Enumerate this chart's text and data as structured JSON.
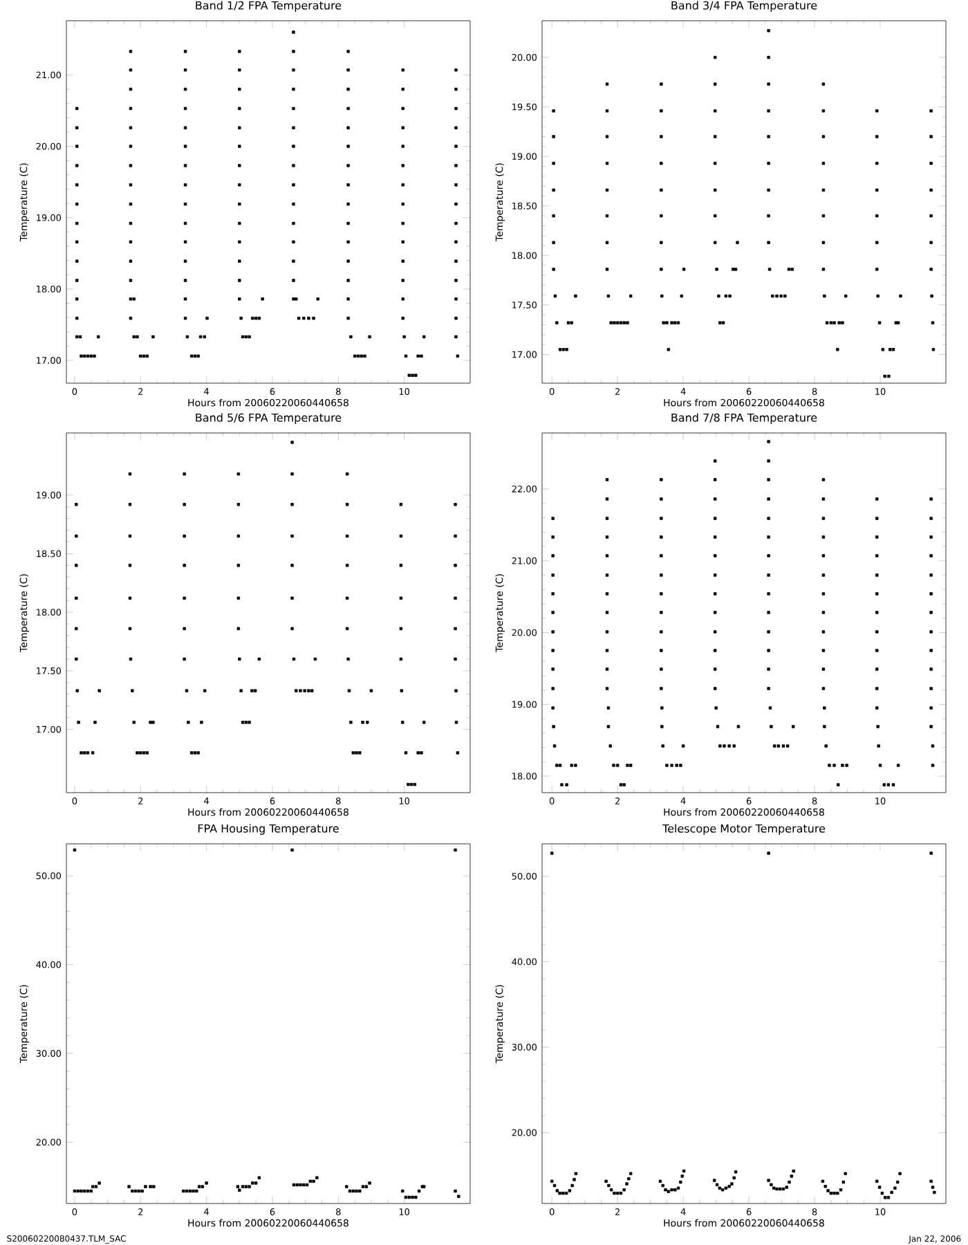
{
  "chart_data": [
    {
      "type": "scatter",
      "title": "Band 1/2 FPA Temperature",
      "xlabel": "Hours from 20060220060440658",
      "ylabel": "Temperature (C)",
      "marker": "square",
      "xlim": [
        -0.25,
        12
      ],
      "ylim": [
        16.68,
        21.76
      ],
      "xticks": [
        0,
        2,
        4,
        6,
        8,
        10
      ],
      "yticks": [
        {
          "value": 17,
          "label": "17.00"
        },
        {
          "value": 18,
          "label": "18.00"
        },
        {
          "value": 19,
          "label": "19.00"
        },
        {
          "value": 20,
          "label": "20.00"
        },
        {
          "value": 21,
          "label": "21.00"
        }
      ],
      "series": [
        {
          "color": "#000000",
          "x": [
            0.07,
            0.07,
            0.07,
            0.07,
            0.07,
            0.07,
            0.07,
            0.07,
            0.07,
            0.07,
            0.07,
            0.07,
            0.07,
            0.17,
            0.2,
            0.3,
            0.4,
            0.5,
            0.6,
            0.72
          ],
          "values": [
            17.33,
            17.59,
            17.86,
            18.12,
            18.39,
            18.66,
            18.92,
            19.19,
            19.46,
            19.73,
            20.0,
            20.26,
            20.53,
            17.33,
            17.06,
            17.06,
            17.06,
            17.06,
            17.06,
            17.33
          ]
        },
        {
          "color": "#000000",
          "x": [
            1.7,
            1.7,
            1.7,
            1.7,
            1.7,
            1.7,
            1.7,
            1.7,
            1.7,
            1.7,
            1.7,
            1.7,
            1.7,
            1.7,
            1.7,
            1.8,
            1.8,
            1.9,
            2.0,
            2.1,
            2.2,
            2.38
          ],
          "values": [
            17.59,
            17.86,
            18.12,
            18.39,
            18.66,
            18.92,
            19.19,
            19.46,
            19.73,
            20.0,
            20.26,
            20.53,
            20.8,
            21.07,
            21.33,
            17.86,
            17.33,
            17.33,
            17.06,
            17.06,
            17.06,
            17.33
          ]
        },
        {
          "color": "#000000",
          "x": [
            3.36,
            3.36,
            3.36,
            3.36,
            3.36,
            3.36,
            3.36,
            3.36,
            3.36,
            3.36,
            3.36,
            3.36,
            3.36,
            3.36,
            3.36,
            3.42,
            3.55,
            3.65,
            3.75,
            3.82,
            3.94,
            4.02
          ],
          "values": [
            17.59,
            17.86,
            18.12,
            18.39,
            18.66,
            18.92,
            19.19,
            19.46,
            19.73,
            20.0,
            20.26,
            20.53,
            20.8,
            21.07,
            21.33,
            17.33,
            17.06,
            17.06,
            17.06,
            17.33,
            17.33,
            17.59
          ]
        },
        {
          "color": "#000000",
          "x": [
            5.0,
            5.0,
            5.0,
            5.0,
            5.0,
            5.0,
            5.0,
            5.0,
            5.0,
            5.0,
            5.0,
            5.0,
            5.0,
            5.0,
            5.05,
            5.1,
            5.2,
            5.3,
            5.4,
            5.5,
            5.6,
            5.7
          ],
          "values": [
            17.86,
            18.12,
            18.39,
            18.66,
            18.92,
            19.19,
            19.46,
            19.73,
            20.0,
            20.26,
            20.53,
            20.8,
            21.07,
            21.33,
            17.59,
            17.33,
            17.33,
            17.33,
            17.59,
            17.59,
            17.59,
            17.86
          ]
        },
        {
          "color": "#000000",
          "x": [
            6.64,
            6.64,
            6.64,
            6.64,
            6.64,
            6.64,
            6.64,
            6.64,
            6.64,
            6.64,
            6.64,
            6.64,
            6.64,
            6.64,
            6.64,
            6.72,
            6.8,
            6.95,
            7.1,
            7.25,
            7.38
          ],
          "values": [
            17.86,
            18.12,
            18.39,
            18.66,
            18.92,
            19.19,
            19.46,
            19.73,
            20.0,
            20.26,
            20.53,
            20.8,
            21.07,
            21.33,
            21.6,
            17.86,
            17.59,
            17.59,
            17.59,
            17.59,
            17.86
          ]
        },
        {
          "color": "#000000",
          "x": [
            8.3,
            8.3,
            8.3,
            8.3,
            8.3,
            8.3,
            8.3,
            8.3,
            8.3,
            8.3,
            8.3,
            8.3,
            8.3,
            8.3,
            8.3,
            8.38,
            8.5,
            8.6,
            8.7,
            8.8,
            8.95
          ],
          "values": [
            17.59,
            17.86,
            18.12,
            18.39,
            18.66,
            18.92,
            19.19,
            19.46,
            19.73,
            20.0,
            20.26,
            20.53,
            20.8,
            21.07,
            21.33,
            17.33,
            17.06,
            17.06,
            17.06,
            17.06,
            17.33
          ]
        },
        {
          "color": "#000000",
          "x": [
            9.96,
            9.96,
            9.96,
            9.96,
            9.96,
            9.96,
            9.96,
            9.96,
            9.96,
            9.96,
            9.96,
            9.96,
            9.96,
            9.96,
            10.0,
            10.05,
            10.15,
            10.25,
            10.35,
            10.42,
            10.52,
            10.6
          ],
          "values": [
            17.59,
            17.86,
            18.12,
            18.39,
            18.66,
            18.92,
            19.19,
            19.46,
            19.73,
            20.0,
            20.26,
            20.53,
            20.8,
            21.07,
            17.33,
            17.06,
            16.79,
            16.79,
            16.79,
            17.06,
            17.06,
            17.33
          ]
        },
        {
          "color": "#000000",
          "x": [
            11.57,
            11.57,
            11.57,
            11.57,
            11.57,
            11.57,
            11.57,
            11.57,
            11.57,
            11.57,
            11.57,
            11.57,
            11.57,
            11.57,
            11.57,
            11.62
          ],
          "values": [
            17.33,
            17.59,
            17.86,
            18.12,
            18.39,
            18.66,
            18.92,
            19.19,
            19.46,
            19.73,
            20.0,
            20.26,
            20.53,
            20.8,
            21.07,
            17.06
          ]
        }
      ]
    },
    {
      "type": "scatter",
      "title": "Band 3/4 FPA Temperature",
      "xlabel": "Hours from 20060220060440658",
      "ylabel": "Temperature (C)",
      "marker": "square",
      "xlim": [
        -0.3,
        12
      ],
      "ylim": [
        16.71,
        20.37
      ],
      "xticks": [
        0,
        2,
        4,
        6,
        8,
        10
      ],
      "yticks": [
        {
          "value": 17,
          "label": "17.00"
        },
        {
          "value": 17.5,
          "label": "17.50"
        },
        {
          "value": 18,
          "label": "18.00"
        },
        {
          "value": 18.5,
          "label": "18.50"
        },
        {
          "value": 19,
          "label": "19.00"
        },
        {
          "value": 19.5,
          "label": "19.50"
        },
        {
          "value": 20,
          "label": "20.00"
        }
      ],
      "series": [
        {
          "color": "#000000",
          "x": [
            0.05,
            0.05,
            0.05,
            0.05,
            0.05,
            0.05,
            0.05,
            0.1,
            0.15,
            0.25,
            0.35,
            0.45,
            0.5,
            0.6,
            0.72
          ],
          "values": [
            17.86,
            18.13,
            18.4,
            18.66,
            18.93,
            19.2,
            19.46,
            17.59,
            17.32,
            17.05,
            17.05,
            17.05,
            17.32,
            17.32,
            17.59
          ]
        },
        {
          "color": "#000000",
          "x": [
            1.68,
            1.68,
            1.68,
            1.68,
            1.68,
            1.68,
            1.68,
            1.68,
            1.72,
            1.8,
            1.9,
            2.0,
            2.1,
            2.2,
            2.3,
            2.4
          ],
          "values": [
            17.86,
            18.13,
            18.4,
            18.66,
            18.93,
            19.2,
            19.46,
            19.73,
            17.59,
            17.32,
            17.32,
            17.32,
            17.32,
            17.32,
            17.32,
            17.59
          ]
        },
        {
          "color": "#000000",
          "x": [
            3.33,
            3.33,
            3.33,
            3.33,
            3.33,
            3.33,
            3.33,
            3.33,
            3.35,
            3.4,
            3.5,
            3.55,
            3.65,
            3.75,
            3.85,
            3.95,
            4.02
          ],
          "values": [
            17.86,
            18.13,
            18.4,
            18.66,
            18.93,
            19.2,
            19.46,
            19.73,
            17.59,
            17.32,
            17.32,
            17.05,
            17.32,
            17.32,
            17.32,
            17.59,
            17.86
          ]
        },
        {
          "color": "#000000",
          "x": [
            4.97,
            4.97,
            4.97,
            4.97,
            4.97,
            4.97,
            4.97,
            4.97,
            5.02,
            5.08,
            5.12,
            5.22,
            5.3,
            5.42,
            5.52,
            5.6,
            5.65
          ],
          "values": [
            18.13,
            18.4,
            18.66,
            18.93,
            19.2,
            19.46,
            19.73,
            20.0,
            17.86,
            17.59,
            17.32,
            17.32,
            17.59,
            17.59,
            17.86,
            17.86,
            18.13
          ]
        },
        {
          "color": "#000000",
          "x": [
            6.6,
            6.6,
            6.6,
            6.6,
            6.6,
            6.6,
            6.6,
            6.6,
            6.6,
            6.63,
            6.72,
            6.85,
            6.98,
            7.1,
            7.22,
            7.32
          ],
          "values": [
            18.13,
            18.4,
            18.66,
            18.93,
            19.2,
            19.46,
            19.73,
            20.0,
            20.27,
            17.86,
            17.59,
            17.59,
            17.59,
            17.59,
            17.86,
            17.86
          ]
        },
        {
          "color": "#000000",
          "x": [
            8.27,
            8.27,
            8.27,
            8.27,
            8.27,
            8.27,
            8.27,
            8.27,
            8.3,
            8.38,
            8.5,
            8.6,
            8.7,
            8.75,
            8.85,
            8.95
          ],
          "values": [
            17.86,
            18.13,
            18.4,
            18.66,
            18.93,
            19.2,
            19.46,
            19.73,
            17.59,
            17.32,
            17.32,
            17.32,
            17.05,
            17.32,
            17.32,
            17.59
          ]
        },
        {
          "color": "#000000",
          "x": [
            9.9,
            9.9,
            9.9,
            9.9,
            9.9,
            9.9,
            9.9,
            9.93,
            9.98,
            10.08,
            10.14,
            10.26,
            10.3,
            10.4,
            10.48,
            10.55,
            10.62
          ],
          "values": [
            17.86,
            18.13,
            18.4,
            18.66,
            18.93,
            19.2,
            19.46,
            17.59,
            17.32,
            17.05,
            16.78,
            16.78,
            17.05,
            17.05,
            17.32,
            17.32,
            17.59
          ]
        },
        {
          "color": "#000000",
          "x": [
            11.55,
            11.55,
            11.55,
            11.55,
            11.55,
            11.55,
            11.55,
            11.57,
            11.6,
            11.62
          ],
          "values": [
            17.86,
            18.13,
            18.4,
            18.66,
            18.93,
            19.2,
            19.46,
            17.59,
            17.32,
            17.05
          ]
        }
      ]
    },
    {
      "type": "scatter",
      "title": "Band 5/6 FPA Temperature",
      "xlabel": "Hours from 20060220060440658",
      "ylabel": "Temperature (C)",
      "marker": "square",
      "xlim": [
        -0.25,
        12
      ],
      "ylim": [
        16.46,
        19.53
      ],
      "xticks": [
        0,
        2,
        4,
        6,
        8,
        10
      ],
      "yticks": [
        {
          "value": 17,
          "label": "17.00"
        },
        {
          "value": 17.5,
          "label": "17.50"
        },
        {
          "value": 18,
          "label": "18.00"
        },
        {
          "value": 18.5,
          "label": "18.50"
        },
        {
          "value": 19,
          "label": "19.00"
        }
      ],
      "series": [
        {
          "color": "#000000",
          "x": [
            0.05,
            0.05,
            0.05,
            0.05,
            0.05,
            0.05,
            0.08,
            0.12,
            0.2,
            0.3,
            0.4,
            0.55,
            0.62,
            0.75
          ],
          "values": [
            17.6,
            17.86,
            18.12,
            18.4,
            18.65,
            18.92,
            17.33,
            17.06,
            16.8,
            16.8,
            16.8,
            16.8,
            17.06,
            17.33
          ]
        },
        {
          "color": "#000000",
          "x": [
            1.68,
            1.68,
            1.68,
            1.68,
            1.68,
            1.68,
            1.7,
            1.75,
            1.8,
            1.9,
            2.0,
            2.1,
            2.2,
            2.3,
            2.38
          ],
          "values": [
            17.86,
            18.12,
            18.4,
            18.65,
            18.92,
            19.18,
            17.6,
            17.33,
            17.06,
            16.8,
            16.8,
            16.8,
            16.8,
            17.06,
            17.06
          ]
        },
        {
          "color": "#000000",
          "x": [
            3.33,
            3.33,
            3.33,
            3.33,
            3.33,
            3.33,
            3.33,
            3.4,
            3.45,
            3.55,
            3.65,
            3.75,
            3.85,
            3.95
          ],
          "values": [
            17.6,
            17.86,
            18.12,
            18.4,
            18.65,
            18.92,
            19.18,
            17.33,
            17.06,
            16.8,
            16.8,
            16.8,
            17.06,
            17.33
          ]
        },
        {
          "color": "#000000",
          "x": [
            4.97,
            4.97,
            4.97,
            4.97,
            4.97,
            4.97,
            5.0,
            5.05,
            5.1,
            5.2,
            5.3,
            5.38,
            5.48,
            5.6
          ],
          "values": [
            17.86,
            18.12,
            18.4,
            18.65,
            18.92,
            19.18,
            17.6,
            17.33,
            17.06,
            17.06,
            17.06,
            17.33,
            17.33,
            17.6
          ]
        },
        {
          "color": "#000000",
          "x": [
            6.6,
            6.6,
            6.6,
            6.6,
            6.6,
            6.6,
            6.6,
            6.65,
            6.72,
            6.85,
            6.98,
            7.1,
            7.2,
            7.3
          ],
          "values": [
            17.86,
            18.12,
            18.4,
            18.65,
            18.92,
            19.18,
            19.45,
            17.6,
            17.33,
            17.33,
            17.33,
            17.33,
            17.33,
            17.6
          ]
        },
        {
          "color": "#000000",
          "x": [
            8.27,
            8.27,
            8.27,
            8.27,
            8.27,
            8.27,
            8.3,
            8.33,
            8.38,
            8.45,
            8.55,
            8.65,
            8.74,
            8.88,
            9.0
          ],
          "values": [
            17.86,
            18.12,
            18.4,
            18.65,
            18.92,
            19.18,
            17.6,
            17.33,
            17.06,
            16.8,
            16.8,
            16.8,
            17.06,
            17.06,
            17.33
          ]
        },
        {
          "color": "#000000",
          "x": [
            9.9,
            9.9,
            9.9,
            9.9,
            9.9,
            9.9,
            9.92,
            9.95,
            10.05,
            10.12,
            10.22,
            10.32,
            10.42,
            10.52,
            10.6
          ],
          "values": [
            17.6,
            17.86,
            18.12,
            18.4,
            18.65,
            18.92,
            17.33,
            17.06,
            16.8,
            16.53,
            16.53,
            16.53,
            16.8,
            16.8,
            17.06
          ]
        },
        {
          "color": "#000000",
          "x": [
            11.55,
            11.55,
            11.55,
            11.55,
            11.55,
            11.55,
            11.57,
            11.58,
            11.62
          ],
          "values": [
            17.6,
            17.86,
            18.12,
            18.4,
            18.65,
            18.92,
            17.33,
            17.06,
            16.8
          ]
        }
      ]
    },
    {
      "type": "scatter",
      "title": "Band 7/8 FPA Temperature",
      "xlabel": "Hours from 20060220060440658",
      "ylabel": "Temperature (C)",
      "marker": "square",
      "xlim": [
        -0.3,
        12
      ],
      "ylim": [
        17.77,
        22.78
      ],
      "xticks": [
        0,
        2,
        4,
        6,
        8,
        10
      ],
      "yticks": [
        {
          "value": 18,
          "label": "18.00"
        },
        {
          "value": 19,
          "label": "19.00"
        },
        {
          "value": 20,
          "label": "20.00"
        },
        {
          "value": 21,
          "label": "21.00"
        },
        {
          "value": 22,
          "label": "22.00"
        }
      ],
      "series": [
        {
          "color": "#000000",
          "x": [
            0.03,
            0.03,
            0.03,
            0.03,
            0.03,
            0.03,
            0.03,
            0.03,
            0.03,
            0.03,
            0.03,
            0.05,
            0.08,
            0.15,
            0.25,
            0.3,
            0.45,
            0.6,
            0.72
          ],
          "values": [
            18.95,
            19.22,
            19.49,
            19.75,
            20.01,
            20.28,
            20.54,
            20.8,
            21.07,
            21.33,
            21.59,
            18.69,
            18.42,
            18.15,
            18.15,
            17.88,
            17.88,
            18.15,
            18.15
          ]
        },
        {
          "color": "#000000",
          "x": [
            1.68,
            1.68,
            1.68,
            1.68,
            1.68,
            1.68,
            1.68,
            1.68,
            1.68,
            1.68,
            1.68,
            1.68,
            1.72,
            1.72,
            1.78,
            1.88,
            2.0,
            2.1,
            2.2,
            2.3,
            2.4
          ],
          "values": [
            19.22,
            19.49,
            19.75,
            20.01,
            20.28,
            20.54,
            20.8,
            21.07,
            21.33,
            21.59,
            21.86,
            22.13,
            18.95,
            18.69,
            18.42,
            18.15,
            18.15,
            17.88,
            17.88,
            18.15,
            18.15
          ]
        },
        {
          "color": "#000000",
          "x": [
            3.33,
            3.33,
            3.33,
            3.33,
            3.33,
            3.33,
            3.33,
            3.33,
            3.33,
            3.33,
            3.33,
            3.33,
            3.35,
            3.35,
            3.38,
            3.5,
            3.65,
            3.8,
            3.92,
            4.0
          ],
          "values": [
            19.22,
            19.49,
            19.75,
            20.01,
            20.28,
            20.54,
            20.8,
            21.07,
            21.33,
            21.59,
            21.86,
            22.13,
            18.95,
            18.69,
            18.42,
            18.15,
            18.15,
            18.15,
            18.15,
            18.42
          ]
        },
        {
          "color": "#000000",
          "x": [
            4.97,
            4.97,
            4.97,
            4.97,
            4.97,
            4.97,
            4.97,
            4.97,
            4.97,
            4.97,
            4.97,
            4.97,
            4.97,
            5.0,
            5.05,
            5.12,
            5.25,
            5.4,
            5.55,
            5.68
          ],
          "values": [
            19.22,
            19.49,
            19.75,
            20.01,
            20.28,
            20.54,
            20.8,
            21.07,
            21.33,
            21.59,
            21.86,
            22.13,
            22.39,
            18.95,
            18.69,
            18.42,
            18.42,
            18.42,
            18.42,
            18.69
          ]
        },
        {
          "color": "#000000",
          "x": [
            6.6,
            6.6,
            6.6,
            6.6,
            6.6,
            6.6,
            6.6,
            6.6,
            6.6,
            6.6,
            6.6,
            6.6,
            6.6,
            6.6,
            6.65,
            6.68,
            6.78,
            6.9,
            7.05,
            7.18,
            7.35
          ],
          "values": [
            19.22,
            19.49,
            19.75,
            20.01,
            20.28,
            20.54,
            20.8,
            21.07,
            21.33,
            21.59,
            21.86,
            22.13,
            22.39,
            22.66,
            18.95,
            18.69,
            18.42,
            18.42,
            18.42,
            18.42,
            18.69
          ]
        },
        {
          "color": "#000000",
          "x": [
            8.27,
            8.27,
            8.27,
            8.27,
            8.27,
            8.27,
            8.27,
            8.27,
            8.27,
            8.27,
            8.27,
            8.27,
            8.3,
            8.3,
            8.35,
            8.45,
            8.6,
            8.72,
            8.85,
            8.98
          ],
          "values": [
            19.22,
            19.49,
            19.75,
            20.01,
            20.28,
            20.54,
            20.8,
            21.07,
            21.33,
            21.59,
            21.86,
            22.13,
            18.95,
            18.69,
            18.42,
            18.15,
            18.15,
            17.88,
            18.15,
            18.15
          ]
        },
        {
          "color": "#000000",
          "x": [
            9.9,
            9.9,
            9.9,
            9.9,
            9.9,
            9.9,
            9.9,
            9.9,
            9.9,
            9.9,
            9.9,
            9.9,
            9.93,
            9.95,
            10.0,
            10.12,
            10.25,
            10.4,
            10.55
          ],
          "values": [
            18.95,
            19.22,
            19.49,
            19.75,
            20.01,
            20.28,
            20.54,
            20.8,
            21.07,
            21.33,
            21.59,
            21.86,
            18.69,
            18.42,
            18.15,
            17.88,
            17.88,
            17.88,
            18.15
          ]
        },
        {
          "color": "#000000",
          "x": [
            11.55,
            11.55,
            11.55,
            11.55,
            11.55,
            11.55,
            11.55,
            11.55,
            11.55,
            11.55,
            11.55,
            11.55,
            11.55,
            11.6,
            11.6
          ],
          "values": [
            18.69,
            18.95,
            19.22,
            19.49,
            19.75,
            20.01,
            20.28,
            20.54,
            20.8,
            21.07,
            21.33,
            21.59,
            21.86,
            18.42,
            18.15
          ]
        }
      ]
    },
    {
      "type": "scatter",
      "title": "FPA Housing Temperature",
      "xlabel": "Hours from 20060220060440658",
      "ylabel": "Temperature (C)",
      "marker": "square",
      "xlim": [
        -0.25,
        12
      ],
      "ylim": [
        13.1,
        53.6
      ],
      "xticks": [
        0,
        2,
        4,
        6,
        8,
        10
      ],
      "yticks": [
        {
          "value": 20,
          "label": "20.00"
        },
        {
          "value": 30,
          "label": "30.00"
        },
        {
          "value": 40,
          "label": "40.00"
        },
        {
          "value": 50,
          "label": "50.00"
        }
      ],
      "annotations": [
        "S20060220080437.TLM_SAC"
      ],
      "series": [
        {
          "color": "#000000",
          "x": [
            0,
            0,
            0.1,
            0.2,
            0.3,
            0.4,
            0.5,
            0.55,
            0.65,
            0.75,
            1.65,
            1.75,
            1.85,
            1.95,
            2.05,
            2.15,
            2.3,
            2.4,
            3.3,
            3.4,
            3.5,
            3.6,
            3.7,
            3.78,
            3.88,
            4.0,
            4.95,
            5.0,
            5.1,
            5.2,
            5.3,
            5.4,
            5.5,
            5.6,
            6.6,
            6.65,
            6.75,
            6.85,
            6.95,
            7.05,
            7.15,
            7.25,
            7.35,
            8.25,
            8.35,
            8.45,
            8.55,
            8.65,
            8.75,
            8.85,
            8.95,
            9.95,
            10.05,
            10.15,
            10.25,
            10.35,
            10.45,
            10.55,
            10.6,
            11.55,
            11.55,
            11.65
          ],
          "values": [
            52.9,
            14.5,
            14.5,
            14.5,
            14.5,
            14.5,
            14.5,
            15.0,
            15.0,
            15.4,
            15.0,
            14.5,
            14.5,
            14.5,
            14.5,
            15.0,
            15.0,
            15.0,
            14.5,
            14.5,
            14.5,
            14.5,
            14.5,
            15.0,
            15.0,
            15.4,
            15.0,
            14.6,
            15.0,
            15.0,
            15.0,
            15.4,
            15.4,
            16.0,
            52.9,
            15.2,
            15.2,
            15.2,
            15.2,
            15.2,
            15.6,
            15.6,
            16.0,
            15.0,
            14.5,
            14.5,
            14.5,
            14.5,
            15.0,
            15.0,
            15.4,
            14.5,
            13.8,
            13.8,
            13.8,
            13.8,
            14.5,
            15.0,
            15.0,
            52.9,
            14.5,
            13.9
          ]
        }
      ]
    },
    {
      "type": "scatter",
      "title": "Telescope Motor Temperature",
      "xlabel": "Hours from 20060220060440658",
      "ylabel": "Temperature (C)",
      "marker": "square",
      "xlim": [
        -0.3,
        12
      ],
      "ylim": [
        11.7,
        53.8
      ],
      "xticks": [
        0,
        2,
        4,
        6,
        8,
        10
      ],
      "yticks": [
        {
          "value": 20,
          "label": "20.00"
        },
        {
          "value": 30,
          "label": "30.00"
        },
        {
          "value": 40,
          "label": "40.00"
        },
        {
          "value": 50,
          "label": "50.00"
        }
      ],
      "annotations": [
        "Jan 22, 2006"
      ],
      "series": [
        {
          "color": "#000000",
          "x": [
            0,
            0,
            0.08,
            0.16,
            0.24,
            0.34,
            0.44,
            0.54,
            0.62,
            0.68,
            0.73,
            1.65,
            1.73,
            1.81,
            1.9,
            2.0,
            2.1,
            2.2,
            2.28,
            2.34,
            2.4,
            3.3,
            3.38,
            3.46,
            3.55,
            3.65,
            3.75,
            3.85,
            3.92,
            3.97,
            4.02,
            4.95,
            5.03,
            5.11,
            5.2,
            5.3,
            5.4,
            5.48,
            5.55,
            5.6,
            6.6,
            6.6,
            6.68,
            6.76,
            6.85,
            6.95,
            7.05,
            7.15,
            7.23,
            7.3,
            7.36,
            8.25,
            8.33,
            8.41,
            8.5,
            8.6,
            8.7,
            8.8,
            8.88,
            8.94,
            9.9,
            9.98,
            10.06,
            10.15,
            10.25,
            10.35,
            10.45,
            10.53,
            10.6,
            11.55,
            11.55,
            11.6,
            11.65
          ],
          "values": [
            52.7,
            14.3,
            13.8,
            13.2,
            12.9,
            12.9,
            12.9,
            13.2,
            13.8,
            14.5,
            15.2,
            14.3,
            13.8,
            13.3,
            12.9,
            12.9,
            12.9,
            13.3,
            14.0,
            14.6,
            15.2,
            14.3,
            13.8,
            13.3,
            13.1,
            13.3,
            13.3,
            13.5,
            14.2,
            14.9,
            15.5,
            14.4,
            13.9,
            13.5,
            13.3,
            13.5,
            13.7,
            14.0,
            14.7,
            15.4,
            52.7,
            14.4,
            13.9,
            13.5,
            13.4,
            13.4,
            13.4,
            13.6,
            14.2,
            14.9,
            15.5,
            14.3,
            13.7,
            13.2,
            12.9,
            12.9,
            12.9,
            13.3,
            14.2,
            15.2,
            14.3,
            13.6,
            12.9,
            12.4,
            12.4,
            13.0,
            13.5,
            14.2,
            15.2,
            52.7,
            14.3,
            13.6,
            13.0
          ]
        }
      ]
    }
  ]
}
